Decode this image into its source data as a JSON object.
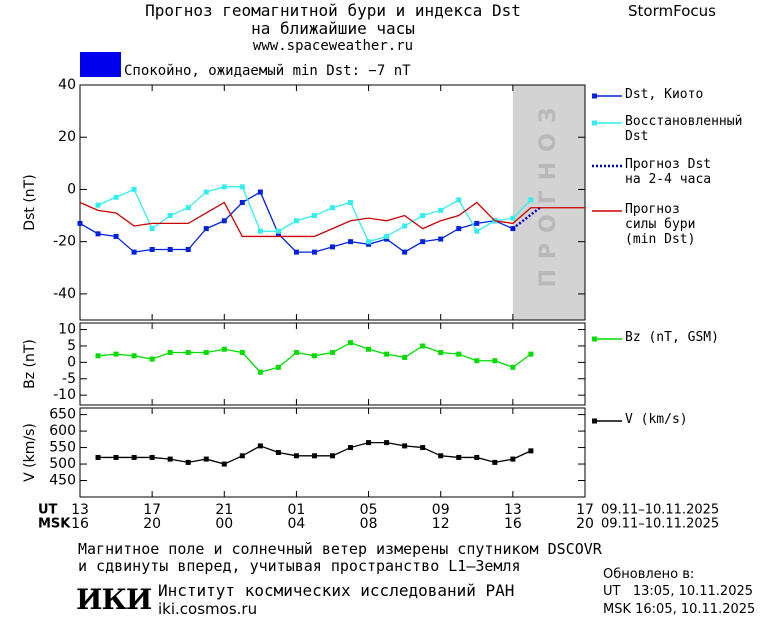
{
  "header": {
    "title_lines": [
      "Прогноз геомагнитной бури и индекса Dst",
      "на ближайшие часы"
    ],
    "site": "www.spaceweather.ru",
    "brand": "StormFocus",
    "status": {
      "text": "Спокойно, ожидаемый min Dst: −7 nT",
      "color": "#0000ee"
    }
  },
  "chart_data": [
    {
      "type": "line",
      "ylabel": "Dst (nT)",
      "xlim": [
        0,
        28
      ],
      "ylim": [
        -50,
        40
      ],
      "yticks": [
        -40,
        -20,
        0,
        20,
        40
      ],
      "forecast": {
        "xlim": [
          24,
          28
        ],
        "label": "ПРОГНОЗ",
        "color": "#d3d3d3"
      },
      "series": [
        {
          "name": "Dst, Киото",
          "color": "#0022dd",
          "marker": "square",
          "x": [
            0,
            1,
            2,
            3,
            4,
            5,
            6,
            7,
            8,
            9,
            10,
            11,
            12,
            13,
            14,
            15,
            16,
            17,
            18,
            19,
            20,
            21,
            22,
            23,
            24
          ],
          "values": [
            -13,
            -17,
            -18,
            -24,
            -23,
            -23,
            -23,
            -15,
            -12,
            -5,
            -1,
            -17,
            -24,
            -24,
            -22,
            -20,
            -21,
            -19,
            -24,
            -20,
            -19,
            -15,
            -13,
            -12,
            -15
          ]
        },
        {
          "name": "Восстановленный\nDst",
          "color": "#33eeee",
          "marker": "square",
          "x": [
            1,
            2,
            3,
            4,
            5,
            6,
            7,
            8,
            9,
            10,
            11,
            12,
            13,
            14,
            15,
            16,
            17,
            18,
            19,
            20,
            21,
            22,
            23,
            24,
            25
          ],
          "values": [
            -6,
            -3,
            0,
            -15,
            -10,
            -7,
            -1,
            1,
            1,
            -16,
            -16,
            -12,
            -10,
            -7,
            -5,
            -20,
            -18,
            -14,
            -10,
            -8,
            -4,
            -16,
            -12,
            -11,
            -4
          ]
        },
        {
          "name": "Прогноз Dst\nна 2-4 часа",
          "color": "#0000cc",
          "dash": "dotted",
          "x": [
            24,
            25.5
          ],
          "values": [
            -15,
            -7
          ]
        },
        {
          "name": "Прогноз\nсилы бури\n(min Dst)",
          "color": "#cc0000",
          "x": [
            0,
            1,
            2,
            3,
            4,
            5,
            6,
            7,
            8,
            9,
            10,
            11,
            12,
            13,
            14,
            15,
            16,
            17,
            18,
            19,
            20,
            21,
            22,
            23,
            24,
            25,
            26,
            27,
            28
          ],
          "values": [
            -5,
            -8,
            -9,
            -14,
            -13,
            -13,
            -13,
            -9,
            -5,
            -18,
            -18,
            -18,
            -18,
            -18,
            -15,
            -12,
            -11,
            -12,
            -10,
            -15,
            -12,
            -10,
            -5,
            -12,
            -13,
            -7,
            -7,
            -7,
            -7
          ]
        }
      ]
    },
    {
      "type": "line",
      "ylabel": "Bz (nT)",
      "xlim": [
        0,
        28
      ],
      "ylim": [
        -13,
        12
      ],
      "yticks": [
        -10,
        -5,
        0,
        5,
        10
      ],
      "series": [
        {
          "name": "Bz (nT, GSM)",
          "color": "#00dd00",
          "marker": "square",
          "x": [
            1,
            2,
            3,
            4,
            5,
            6,
            7,
            8,
            9,
            10,
            11,
            12,
            13,
            14,
            15,
            16,
            17,
            18,
            19,
            20,
            21,
            22,
            23,
            24,
            25
          ],
          "values": [
            2,
            2.5,
            2,
            1,
            3,
            3,
            3,
            4,
            3,
            -3,
            -1.5,
            3,
            2,
            3,
            6,
            4,
            2.5,
            1.5,
            5,
            3,
            2.5,
            0.5,
            0.5,
            -1.5,
            2.5
          ]
        }
      ]
    },
    {
      "type": "line",
      "ylabel": "V (km/s)",
      "xlim": [
        0,
        28
      ],
      "ylim": [
        400,
        670
      ],
      "yticks": [
        450,
        500,
        550,
        600,
        650
      ],
      "series": [
        {
          "name": "V (km/s)",
          "color": "#000000",
          "marker": "square",
          "x": [
            1,
            2,
            3,
            4,
            5,
            6,
            7,
            8,
            9,
            10,
            11,
            12,
            13,
            14,
            15,
            16,
            17,
            18,
            19,
            20,
            21,
            22,
            23,
            24,
            25
          ],
          "values": [
            520,
            520,
            520,
            520,
            515,
            505,
            515,
            500,
            525,
            555,
            535,
            525,
            525,
            525,
            550,
            565,
            565,
            555,
            550,
            525,
            520,
            520,
            505,
            515,
            540
          ]
        }
      ],
      "xaxis_names": [
        "UT",
        "MSK"
      ],
      "xticks": [
        {
          "value": 0,
          "label": "13"
        },
        {
          "value": 4,
          "label": "17"
        },
        {
          "value": 8,
          "label": "21"
        },
        {
          "value": 12,
          "label": "01"
        },
        {
          "value": 16,
          "label": "05"
        },
        {
          "value": 20,
          "label": "09"
        },
        {
          "value": 24,
          "label": "13"
        },
        {
          "value": 28,
          "label": "17"
        }
      ],
      "xticks_msk": [
        {
          "value": 0,
          "label": "16"
        },
        {
          "value": 4,
          "label": "20"
        },
        {
          "value": 8,
          "label": "00"
        },
        {
          "value": 12,
          "label": "04"
        },
        {
          "value": 16,
          "label": "08"
        },
        {
          "value": 20,
          "label": "12"
        },
        {
          "value": 24,
          "label": "16"
        },
        {
          "value": 28,
          "label": "20"
        }
      ],
      "date_range": [
        "09.11–10.11.2025",
        "09.11–10.11.2025"
      ]
    }
  ],
  "footer": {
    "note_lines": [
      "Магнитное поле и солнечный ветер измерены спутником DSCOVR",
      "и сдвинуты вперед, учитывая пространство L1–Земля"
    ],
    "logo": "ИКИ",
    "institute": "Институт космических исследований РАН",
    "url": "iki.cosmos.ru",
    "updated_title": "Обновлено в:",
    "updated_lines": [
      "UT   13:05, 10.11.2025",
      "MSK 16:05, 10.11.2025"
    ]
  }
}
